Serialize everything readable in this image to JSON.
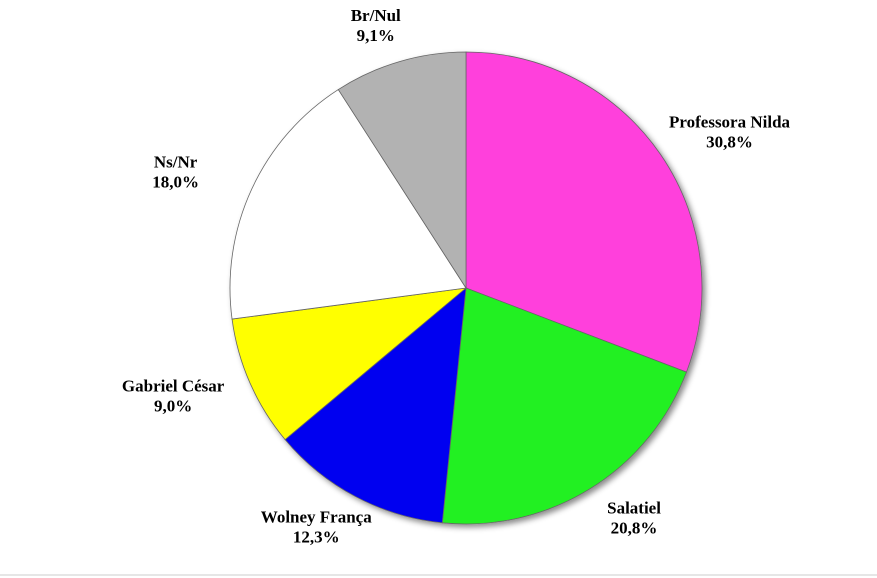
{
  "chart_data": {
    "type": "pie",
    "categories": [
      "Professora Nilda",
      "Salatiel",
      "Wolney França",
      "Gabriel César",
      "Ns/Nr",
      "Br/Nul"
    ],
    "values": [
      30.8,
      20.8,
      12.3,
      9.0,
      18.0,
      9.1
    ],
    "value_labels": [
      "30,8%",
      "20,8%",
      "12,3%",
      "9,0%",
      "18,0%",
      "9,1%"
    ],
    "colors": [
      "#ff3fdc",
      "#22f022",
      "#0000f0",
      "#ffff00",
      "#ffffff",
      "#b2b2b2"
    ]
  }
}
